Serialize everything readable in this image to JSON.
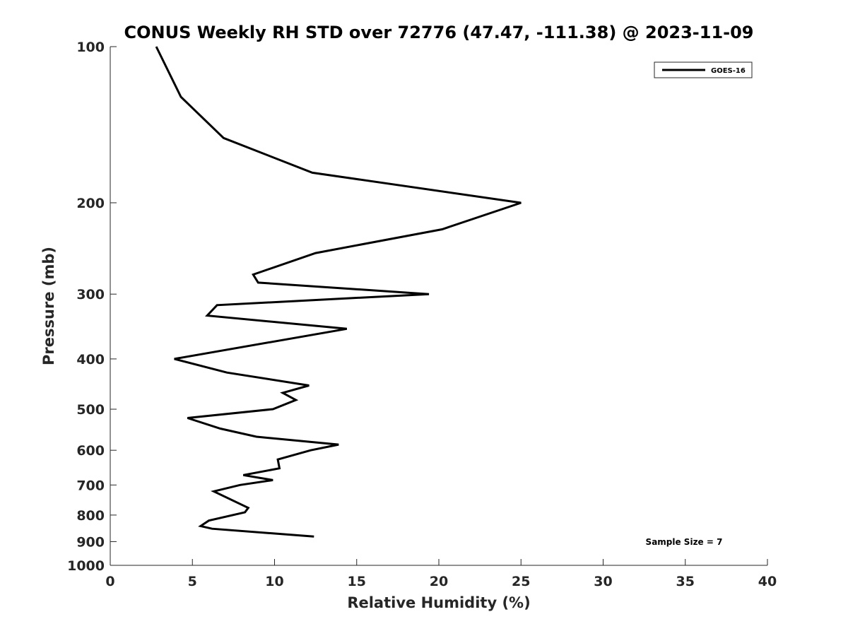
{
  "chart_data": {
    "type": "line",
    "title": "CONUS Weekly RH STD over 72776 (47.47, -111.38) @ 2023-11-09",
    "xlabel": "Relative Humidity (%)",
    "ylabel": "Pressure (mb)",
    "xlim": [
      0,
      40
    ],
    "ylim": [
      100,
      1000
    ],
    "y_scale": "log",
    "y_reversed": true,
    "x_ticks": [
      "0",
      "5",
      "10",
      "15",
      "20",
      "25",
      "30",
      "35",
      "40"
    ],
    "y_ticks": [
      "100",
      "200",
      "300",
      "400",
      "500",
      "600",
      "700",
      "800",
      "900",
      "1000"
    ],
    "grid": false,
    "legend_position": "top-right",
    "annotation": "Sample Size = 7",
    "series": [
      {
        "name": "GOES-16",
        "color": "#000000",
        "points": [
          {
            "x": 2.8,
            "y": 100
          },
          {
            "x": 4.3,
            "y": 125
          },
          {
            "x": 6.9,
            "y": 150
          },
          {
            "x": 12.3,
            "y": 175
          },
          {
            "x": 25.0,
            "y": 200
          },
          {
            "x": 20.2,
            "y": 225
          },
          {
            "x": 12.5,
            "y": 250
          },
          {
            "x": 8.7,
            "y": 275
          },
          {
            "x": 9.0,
            "y": 285
          },
          {
            "x": 19.4,
            "y": 300
          },
          {
            "x": 6.5,
            "y": 315
          },
          {
            "x": 5.9,
            "y": 330
          },
          {
            "x": 14.4,
            "y": 350
          },
          {
            "x": 3.9,
            "y": 400
          },
          {
            "x": 7.1,
            "y": 425
          },
          {
            "x": 12.1,
            "y": 450
          },
          {
            "x": 10.5,
            "y": 465
          },
          {
            "x": 11.3,
            "y": 480
          },
          {
            "x": 9.9,
            "y": 500
          },
          {
            "x": 4.7,
            "y": 520
          },
          {
            "x": 6.7,
            "y": 545
          },
          {
            "x": 8.9,
            "y": 565
          },
          {
            "x": 13.9,
            "y": 585
          },
          {
            "x": 12.2,
            "y": 600
          },
          {
            "x": 10.2,
            "y": 625
          },
          {
            "x": 10.3,
            "y": 650
          },
          {
            "x": 8.1,
            "y": 670
          },
          {
            "x": 9.9,
            "y": 685
          },
          {
            "x": 7.9,
            "y": 700
          },
          {
            "x": 6.3,
            "y": 720
          },
          {
            "x": 8.4,
            "y": 775
          },
          {
            "x": 8.2,
            "y": 790
          },
          {
            "x": 6.0,
            "y": 820
          },
          {
            "x": 5.5,
            "y": 840
          },
          {
            "x": 6.2,
            "y": 850
          },
          {
            "x": 12.4,
            "y": 880
          }
        ]
      }
    ]
  }
}
